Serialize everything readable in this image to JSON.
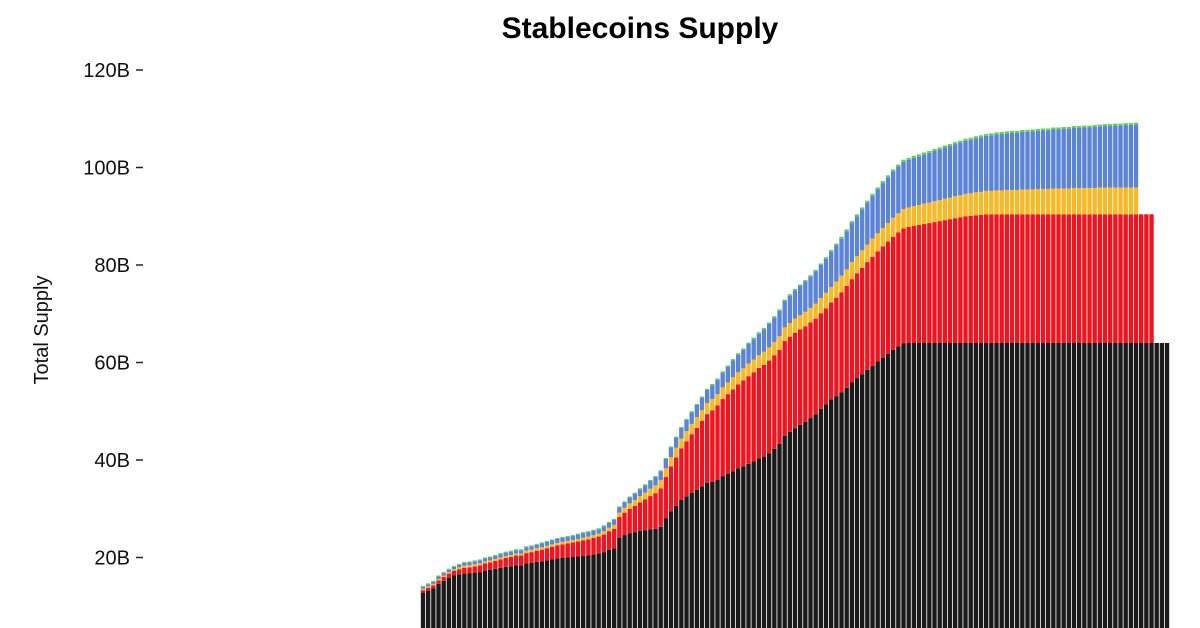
{
  "chart_data": {
    "type": "bar",
    "stacked": true,
    "title": "Stablecoins Supply",
    "xlabel": "",
    "ylabel": "Total Supply",
    "ylim": [
      0,
      120000000000
    ],
    "y_ticks": [
      {
        "value": 20000000000,
        "label": "20B"
      },
      {
        "value": 40000000000,
        "label": "40B"
      },
      {
        "value": 60000000000,
        "label": "60B"
      },
      {
        "value": 80000000000,
        "label": "80B"
      },
      {
        "value": 100000000000,
        "label": "100B"
      },
      {
        "value": 120000000000,
        "label": "120B"
      }
    ],
    "grid": false,
    "legend": "none",
    "series_colors": [
      "#1a1a1a",
      "#f0141e",
      "#f7b928",
      "#5b84d6",
      "#5fd24a"
    ],
    "periods": 180,
    "series": [
      {
        "values_in_billions": [
          0.1,
          0.1,
          0.1,
          0.1,
          0.1,
          0.1,
          0.1,
          0.1,
          0.1,
          0.1,
          0.1,
          0.1,
          0.1,
          0.1,
          0.1,
          0.1,
          0.1,
          0.1,
          0.1,
          0.1,
          0.1,
          0.1,
          0.1,
          0.1,
          0.1,
          0.1,
          0.1,
          0.1,
          0.1,
          0.1,
          0.1,
          0.1,
          0.1,
          0.1,
          0.1,
          12.8,
          13.2,
          13.7,
          14.6,
          15.2,
          15.8,
          16.3,
          16.5,
          16.7,
          16.8,
          16.9,
          17.0,
          17.3,
          17.5,
          17.7,
          17.9,
          18.1,
          18.2,
          18.4,
          18.4,
          18.8,
          18.9,
          19.1,
          19.2,
          19.4,
          19.6,
          19.8,
          19.9,
          20.0,
          20.1,
          20.2,
          20.3,
          20.4,
          20.6,
          20.8,
          21.1,
          21.6,
          21.9,
          24.0,
          24.6,
          25.0,
          25.2,
          25.5,
          25.6,
          25.8,
          25.9,
          26.3,
          28.0,
          29.5,
          30.6,
          31.8,
          32.5,
          33.3,
          33.9,
          34.6,
          35.3,
          35.5,
          35.9,
          36.7,
          37.2,
          37.7,
          38.3,
          38.7,
          39.2,
          39.7,
          40.3,
          40.7,
          41.4,
          42.3,
          43.3,
          45.0,
          45.8,
          46.5,
          47.2,
          47.8,
          48.6,
          49.4,
          50.5,
          51.4,
          52.4,
          53.1,
          53.9,
          54.8,
          55.9,
          56.8,
          57.6,
          58.5,
          59.3,
          60.2,
          61.0,
          61.8,
          62.6,
          63.3,
          63.9,
          64.0,
          64.0,
          64.0,
          64.0,
          64.0,
          64.0,
          64.0,
          64.0,
          64.0,
          64.0,
          64.0,
          64.0,
          64.0,
          64.0,
          64.0,
          64.0,
          64.0,
          64.0,
          64.0,
          64.0,
          64.0,
          64.0,
          64.0,
          64.0,
          64.0,
          64.0,
          64.0,
          64.0,
          64.0,
          64.0,
          64.0,
          64.0,
          64.0,
          64.0,
          64.0,
          64.0,
          64.0,
          64.0,
          64.0,
          64.0,
          64.0,
          64.0,
          64.0,
          64.0,
          64.0,
          64.0,
          64.0,
          64.0,
          64.0,
          64.0,
          64.0,
          64.0,
          64.0,
          64.0,
          64.0
        ]
      },
      {
        "values_in_billions": [
          0.0,
          0.0,
          0.0,
          0.0,
          0.0,
          0.0,
          0.0,
          0.0,
          0.0,
          0.0,
          0.0,
          0.0,
          0.0,
          0.0,
          0.0,
          0.0,
          0.0,
          0.0,
          0.0,
          0.0,
          0.0,
          0.0,
          0.0,
          0.0,
          0.0,
          0.0,
          0.0,
          0.0,
          0.0,
          0.0,
          0.0,
          0.0,
          0.0,
          0.0,
          0.0,
          0.5,
          0.6,
          0.6,
          0.7,
          0.8,
          0.9,
          1.0,
          1.1,
          1.2,
          1.2,
          1.3,
          1.4,
          1.5,
          1.5,
          1.6,
          1.7,
          1.8,
          1.9,
          2.0,
          2.0,
          2.1,
          2.2,
          2.3,
          2.4,
          2.5,
          2.6,
          2.7,
          2.8,
          2.9,
          3.0,
          3.1,
          3.2,
          3.3,
          3.4,
          3.5,
          3.6,
          3.8,
          4.0,
          4.3,
          4.6,
          5.0,
          5.4,
          5.8,
          6.3,
          6.8,
          7.3,
          7.9,
          8.5,
          9.2,
          9.9,
          10.6,
          11.3,
          12.0,
          12.7,
          13.4,
          14.1,
          14.7,
          15.3,
          15.8,
          16.3,
          16.8,
          17.2,
          17.6,
          18.0,
          18.3,
          18.6,
          18.8,
          19.0,
          19.2,
          19.3,
          19.4,
          19.5,
          19.6,
          19.6,
          19.6,
          19.6,
          19.6,
          19.6,
          19.7,
          19.9,
          20.2,
          20.5,
          20.9,
          21.2,
          21.5,
          21.8,
          22.1,
          22.4,
          22.6,
          22.8,
          23.0,
          23.2,
          23.4,
          23.6,
          23.8,
          24.0,
          24.2,
          24.4,
          24.6,
          24.8,
          25.0,
          25.2,
          25.4,
          25.6,
          25.8,
          26.0,
          26.1,
          26.2,
          26.3,
          26.4,
          26.4,
          26.4,
          26.4,
          26.4,
          26.4,
          26.4,
          26.4,
          26.4,
          26.4,
          26.4,
          26.4,
          26.4,
          26.4,
          26.4,
          26.4,
          26.4,
          26.4,
          26.4,
          26.4,
          26.4,
          26.4,
          26.4,
          26.4,
          26.4,
          26.4,
          26.4,
          26.4,
          26.4,
          26.4,
          26.4,
          26.4,
          26.4
        ]
      },
      {
        "values_in_billions": [
          0.0,
          0.0,
          0.0,
          0.0,
          0.0,
          0.0,
          0.0,
          0.0,
          0.0,
          0.0,
          0.0,
          0.0,
          0.0,
          0.0,
          0.0,
          0.0,
          0.0,
          0.0,
          0.0,
          0.0,
          0.0,
          0.0,
          0.0,
          0.0,
          0.0,
          0.0,
          0.0,
          0.0,
          0.0,
          0.0,
          0.0,
          0.0,
          0.0,
          0.0,
          0.0,
          0.3,
          0.3,
          0.3,
          0.3,
          0.3,
          0.3,
          0.3,
          0.4,
          0.4,
          0.4,
          0.4,
          0.4,
          0.4,
          0.4,
          0.4,
          0.4,
          0.4,
          0.4,
          0.4,
          0.4,
          0.5,
          0.5,
          0.5,
          0.5,
          0.5,
          0.5,
          0.5,
          0.5,
          0.5,
          0.5,
          0.5,
          0.6,
          0.6,
          0.6,
          0.6,
          0.7,
          0.7,
          0.8,
          0.9,
          1.0,
          1.1,
          1.2,
          1.3,
          1.4,
          1.5,
          1.6,
          1.7,
          1.8,
          1.9,
          2.0,
          2.0,
          2.1,
          2.1,
          2.2,
          2.2,
          2.3,
          2.3,
          2.3,
          2.4,
          2.4,
          2.5,
          2.5,
          2.5,
          2.6,
          2.6,
          2.6,
          2.7,
          2.7,
          2.7,
          2.8,
          2.8,
          2.8,
          2.9,
          2.9,
          3.0,
          3.0,
          3.1,
          3.1,
          3.2,
          3.2,
          3.3,
          3.4,
          3.4,
          3.5,
          3.5,
          3.6,
          3.6,
          3.7,
          3.7,
          3.8,
          3.8,
          3.9,
          3.9,
          4.0,
          4.0,
          4.1,
          4.1,
          4.2,
          4.2,
          4.3,
          4.3,
          4.4,
          4.4,
          4.5,
          4.5,
          4.6,
          4.6,
          4.7,
          4.7,
          4.8,
          4.8,
          4.9,
          4.9,
          5.0,
          5.0,
          5.0,
          5.1,
          5.1,
          5.1,
          5.2,
          5.2,
          5.2,
          5.3,
          5.3,
          5.3,
          5.3,
          5.4,
          5.4,
          5.4,
          5.4,
          5.4,
          5.5,
          5.5,
          5.5,
          5.5,
          5.5,
          5.5,
          5.5,
          5.5
        ]
      },
      {
        "values_in_billions": [
          0.0,
          0.0,
          0.0,
          0.0,
          0.0,
          0.0,
          0.0,
          0.0,
          0.0,
          0.0,
          0.0,
          0.0,
          0.0,
          0.0,
          0.0,
          0.0,
          0.0,
          0.0,
          0.0,
          0.0,
          0.0,
          0.0,
          0.0,
          0.0,
          0.0,
          0.0,
          0.0,
          0.0,
          0.0,
          0.0,
          0.0,
          0.0,
          0.0,
          0.0,
          0.0,
          0.4,
          0.4,
          0.4,
          0.5,
          0.5,
          0.5,
          0.5,
          0.5,
          0.6,
          0.6,
          0.6,
          0.6,
          0.6,
          0.6,
          0.6,
          0.7,
          0.7,
          0.7,
          0.7,
          0.7,
          0.7,
          0.7,
          0.7,
          0.8,
          0.8,
          0.8,
          0.8,
          0.8,
          0.8,
          0.8,
          0.9,
          0.9,
          0.9,
          0.9,
          0.9,
          1.0,
          1.0,
          1.0,
          1.1,
          1.1,
          1.2,
          1.3,
          1.4,
          1.5,
          1.6,
          1.7,
          1.8,
          1.9,
          2.0,
          2.1,
          2.2,
          2.3,
          2.4,
          2.5,
          2.6,
          2.7,
          2.8,
          2.9,
          3.0,
          3.2,
          3.4,
          3.6,
          3.8,
          4.0,
          4.2,
          4.4,
          4.6,
          4.8,
          5.0,
          5.2,
          5.4,
          5.6,
          5.8,
          6.0,
          6.2,
          6.4,
          6.6,
          6.8,
          7.0,
          7.2,
          7.4,
          7.6,
          7.8,
          8.0,
          8.2,
          8.4,
          8.6,
          8.8,
          9.0,
          9.2,
          9.4,
          9.5,
          9.6,
          9.7,
          9.8,
          9.9,
          10.0,
          10.1,
          10.2,
          10.3,
          10.4,
          10.5,
          10.6,
          10.7,
          10.8,
          10.9,
          11.0,
          11.1,
          11.2,
          11.3,
          11.4,
          11.5,
          11.6,
          11.6,
          11.7,
          11.7,
          11.8,
          11.8,
          11.9,
          11.9,
          12.0,
          12.0,
          12.1,
          12.1,
          12.2,
          12.2,
          12.3,
          12.3,
          12.4,
          12.4,
          12.5,
          12.5,
          12.6,
          12.6,
          12.7,
          12.7,
          12.8,
          12.8,
          12.9
        ]
      },
      {
        "values_in_billions": [
          0.2,
          0.2,
          0.2,
          0.2,
          0.2,
          0.2,
          0.2,
          0.2,
          0.2,
          0.2,
          0.2,
          0.2,
          0.2,
          0.2,
          0.2,
          0.2,
          0.2,
          0.2,
          0.2,
          0.2,
          0.2,
          0.2,
          0.2,
          0.2,
          0.2,
          0.2,
          0.2,
          0.2,
          0.2,
          0.2,
          0.2,
          0.2,
          0.2,
          0.2,
          0.2,
          0.2,
          0.2,
          0.2,
          0.2,
          0.2,
          0.2,
          0.2,
          0.2,
          0.2,
          0.2,
          0.2,
          0.2,
          0.2,
          0.2,
          0.2,
          0.2,
          0.2,
          0.2,
          0.2,
          0.2,
          0.2,
          0.2,
          0.2,
          0.2,
          0.2,
          0.2,
          0.2,
          0.2,
          0.2,
          0.2,
          0.2,
          0.2,
          0.2,
          0.2,
          0.2,
          0.2,
          0.2,
          0.2,
          0.2,
          0.2,
          0.2,
          0.2,
          0.2,
          0.2,
          0.2,
          0.2,
          0.2,
          0.2,
          0.2,
          0.2,
          0.2,
          0.2,
          0.2,
          0.2,
          0.2,
          0.2,
          0.3,
          0.3,
          0.3,
          0.3,
          0.3,
          0.3,
          0.3,
          0.3,
          0.3,
          0.3,
          0.3,
          0.3,
          0.3,
          0.3,
          0.3,
          0.3,
          0.3,
          0.3,
          0.3,
          0.3,
          0.3,
          0.3,
          0.3,
          0.4,
          0.4,
          0.4,
          0.4,
          0.4,
          0.4,
          0.4,
          0.4,
          0.4,
          0.4,
          0.4,
          0.4,
          0.4,
          0.4,
          0.4,
          0.4,
          0.4,
          0.4,
          0.4,
          0.4,
          0.4,
          0.4,
          0.4,
          0.4,
          0.4,
          0.4,
          0.4,
          0.4,
          0.4,
          0.4,
          0.4,
          0.4,
          0.4,
          0.4,
          0.4,
          0.4,
          0.4,
          0.4,
          0.4,
          0.4,
          0.4,
          0.4,
          0.4,
          0.4,
          0.4,
          0.4,
          0.4,
          0.4,
          0.4,
          0.4,
          0.4,
          0.4,
          0.4,
          0.4,
          0.4,
          0.4,
          0.4,
          0.4,
          0.4,
          0.4,
          0.4
        ]
      }
    ]
  }
}
